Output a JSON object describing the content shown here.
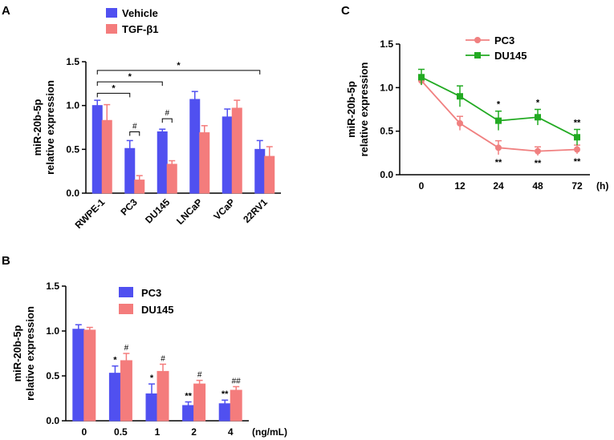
{
  "figure": {
    "panel_labels": [
      "A",
      "B",
      "C"
    ]
  },
  "colors": {
    "blue": "#5050f0",
    "salmon": "#f47c7c",
    "pink_line": "#f08080",
    "green": "#22aa22"
  },
  "chart_data": [
    {
      "id": "A",
      "type": "bar",
      "ylabel": [
        "miR-20b-5p",
        "relative expression"
      ],
      "ylim": [
        0,
        1.5
      ],
      "yticks": [
        "0.0",
        "0.5",
        "1.0",
        "1.5"
      ],
      "categories": [
        "RWPE-1",
        "PC3",
        "DU145",
        "LNCaP",
        "VCaP",
        "22RV1"
      ],
      "series": [
        {
          "name": "Vehicle",
          "color": "#5050f0",
          "values": [
            1.0,
            0.51,
            0.7,
            1.07,
            0.87,
            0.5
          ],
          "errors": [
            0.06,
            0.09,
            0.03,
            0.09,
            0.09,
            0.1
          ]
        },
        {
          "name": "TGF-β1",
          "color": "#f47c7c",
          "values": [
            0.83,
            0.15,
            0.33,
            0.69,
            0.97,
            0.42
          ],
          "errors": [
            0.18,
            0.05,
            0.04,
            0.08,
            0.09,
            0.11
          ]
        }
      ],
      "legend": [
        "Vehicle",
        "TGF-β1"
      ],
      "annotations": [
        {
          "text": "#",
          "type": "pair",
          "category": 1,
          "y": 0.7
        },
        {
          "text": "#",
          "type": "pair",
          "category": 2,
          "y": 0.85
        },
        {
          "text": "*",
          "type": "span",
          "from": 0,
          "to": 1,
          "y": 1.14
        },
        {
          "text": "*",
          "type": "span",
          "from": 0,
          "to": 2,
          "y": 1.27
        },
        {
          "text": "*",
          "type": "span",
          "from": 0,
          "to": 5,
          "y": 1.4
        }
      ]
    },
    {
      "id": "B",
      "type": "bar",
      "ylabel": [
        "miR-20b-5p",
        "relative expression"
      ],
      "ylim": [
        0,
        1.5
      ],
      "yticks": [
        "0.0",
        "0.5",
        "1.0",
        "1.5"
      ],
      "categories": [
        "0",
        "0.5",
        "1",
        "2",
        "4"
      ],
      "xunit": "(ng/mL)",
      "series": [
        {
          "name": "PC3",
          "color": "#5050f0",
          "values": [
            1.02,
            0.53,
            0.3,
            0.17,
            0.19
          ],
          "errors": [
            0.05,
            0.08,
            0.11,
            0.04,
            0.04
          ]
        },
        {
          "name": "DU145",
          "color": "#f47c7c",
          "values": [
            1.01,
            0.67,
            0.55,
            0.41,
            0.34
          ],
          "errors": [
            0.03,
            0.08,
            0.08,
            0.04,
            0.04
          ]
        }
      ],
      "legend": [
        "PC3",
        "DU145"
      ],
      "annotations": [
        {
          "series": 0,
          "category": 1,
          "text": "*"
        },
        {
          "series": 0,
          "category": 2,
          "text": "*"
        },
        {
          "series": 0,
          "category": 3,
          "text": "**"
        },
        {
          "series": 0,
          "category": 4,
          "text": "**"
        },
        {
          "series": 1,
          "category": 1,
          "text": "#"
        },
        {
          "series": 1,
          "category": 2,
          "text": "#"
        },
        {
          "series": 1,
          "category": 3,
          "text": "#"
        },
        {
          "series": 1,
          "category": 4,
          "text": "##"
        }
      ]
    },
    {
      "id": "C",
      "type": "line",
      "ylabel": [
        "miR-20b-5p",
        "relative expression"
      ],
      "ylim": [
        0,
        1.5
      ],
      "yticks": [
        "0.0",
        "0.5",
        "1.0",
        "1.5"
      ],
      "categories": [
        "0",
        "12",
        "24",
        "48",
        "72"
      ],
      "xunit": "(h)",
      "series": [
        {
          "name": "PC3",
          "color": "#f08080",
          "marker": "circle",
          "values": [
            1.08,
            0.59,
            0.31,
            0.27,
            0.29
          ],
          "errors": [
            0.05,
            0.08,
            0.08,
            0.05,
            0.05
          ]
        },
        {
          "name": "DU145",
          "color": "#22aa22",
          "marker": "square",
          "values": [
            1.12,
            0.9,
            0.62,
            0.66,
            0.43
          ],
          "errors": [
            0.09,
            0.12,
            0.11,
            0.09,
            0.09
          ]
        }
      ],
      "legend": [
        "PC3",
        "DU145"
      ],
      "annotations": [
        {
          "series": 1,
          "category": 2,
          "text": "*",
          "pos": "above"
        },
        {
          "series": 1,
          "category": 3,
          "text": "*",
          "pos": "above"
        },
        {
          "series": 1,
          "category": 4,
          "text": "**",
          "pos": "above"
        },
        {
          "series": 0,
          "category": 2,
          "text": "**",
          "pos": "below"
        },
        {
          "series": 0,
          "category": 3,
          "text": "**",
          "pos": "below"
        },
        {
          "series": 0,
          "category": 4,
          "text": "**",
          "pos": "below"
        }
      ]
    }
  ]
}
